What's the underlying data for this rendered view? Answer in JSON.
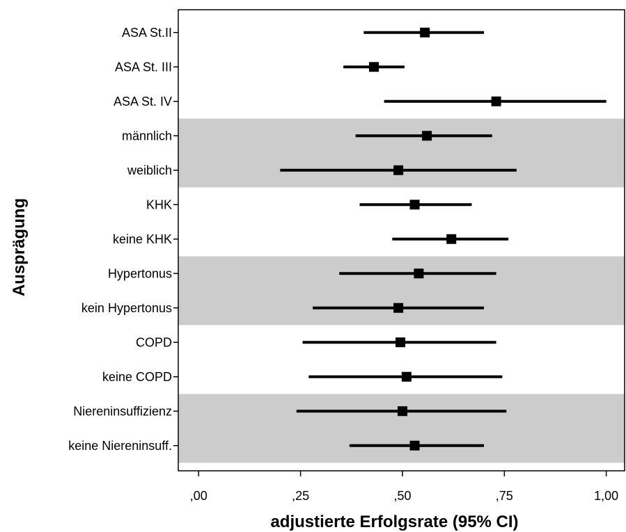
{
  "chart_data": {
    "type": "forest",
    "xlabel": "adjustierte Erfolgsrate (95% CI)",
    "ylabel": "Ausprägung",
    "xlim": [
      -0.05,
      1.045
    ],
    "x_ticks": [
      0,
      0.25,
      0.5,
      0.75,
      1.0
    ],
    "x_tick_labels": [
      ",00",
      ",25",
      ",50",
      ",75",
      "1,00"
    ],
    "colors": {
      "band": "#cccccc",
      "marker": "#000000",
      "line": "#000000"
    },
    "shaded_groups": [
      [
        3,
        4
      ],
      [
        7,
        8
      ],
      [
        11,
        12
      ]
    ],
    "rows": [
      {
        "label": "ASA St.II",
        "estimate": 0.555,
        "lower": 0.405,
        "upper": 0.7
      },
      {
        "label": "ASA St. III",
        "estimate": 0.43,
        "lower": 0.355,
        "upper": 0.505
      },
      {
        "label": "ASA St. IV",
        "estimate": 0.73,
        "lower": 0.455,
        "upper": 1.0
      },
      {
        "label": "männlich",
        "estimate": 0.56,
        "lower": 0.385,
        "upper": 0.72
      },
      {
        "label": "weiblich",
        "estimate": 0.49,
        "lower": 0.2,
        "upper": 0.78
      },
      {
        "label": "KHK",
        "estimate": 0.53,
        "lower": 0.395,
        "upper": 0.67
      },
      {
        "label": "keine KHK",
        "estimate": 0.62,
        "lower": 0.475,
        "upper": 0.76
      },
      {
        "label": "Hypertonus",
        "estimate": 0.54,
        "lower": 0.345,
        "upper": 0.73
      },
      {
        "label": "kein Hypertonus",
        "estimate": 0.49,
        "lower": 0.28,
        "upper": 0.7
      },
      {
        "label": "COPD",
        "estimate": 0.495,
        "lower": 0.255,
        "upper": 0.73
      },
      {
        "label": "keine COPD",
        "estimate": 0.51,
        "lower": 0.27,
        "upper": 0.745
      },
      {
        "label": "Niereninsuffizienz",
        "estimate": 0.5,
        "lower": 0.24,
        "upper": 0.755
      },
      {
        "label": "keine Niereninsuff.",
        "estimate": 0.53,
        "lower": 0.37,
        "upper": 0.7
      }
    ]
  }
}
